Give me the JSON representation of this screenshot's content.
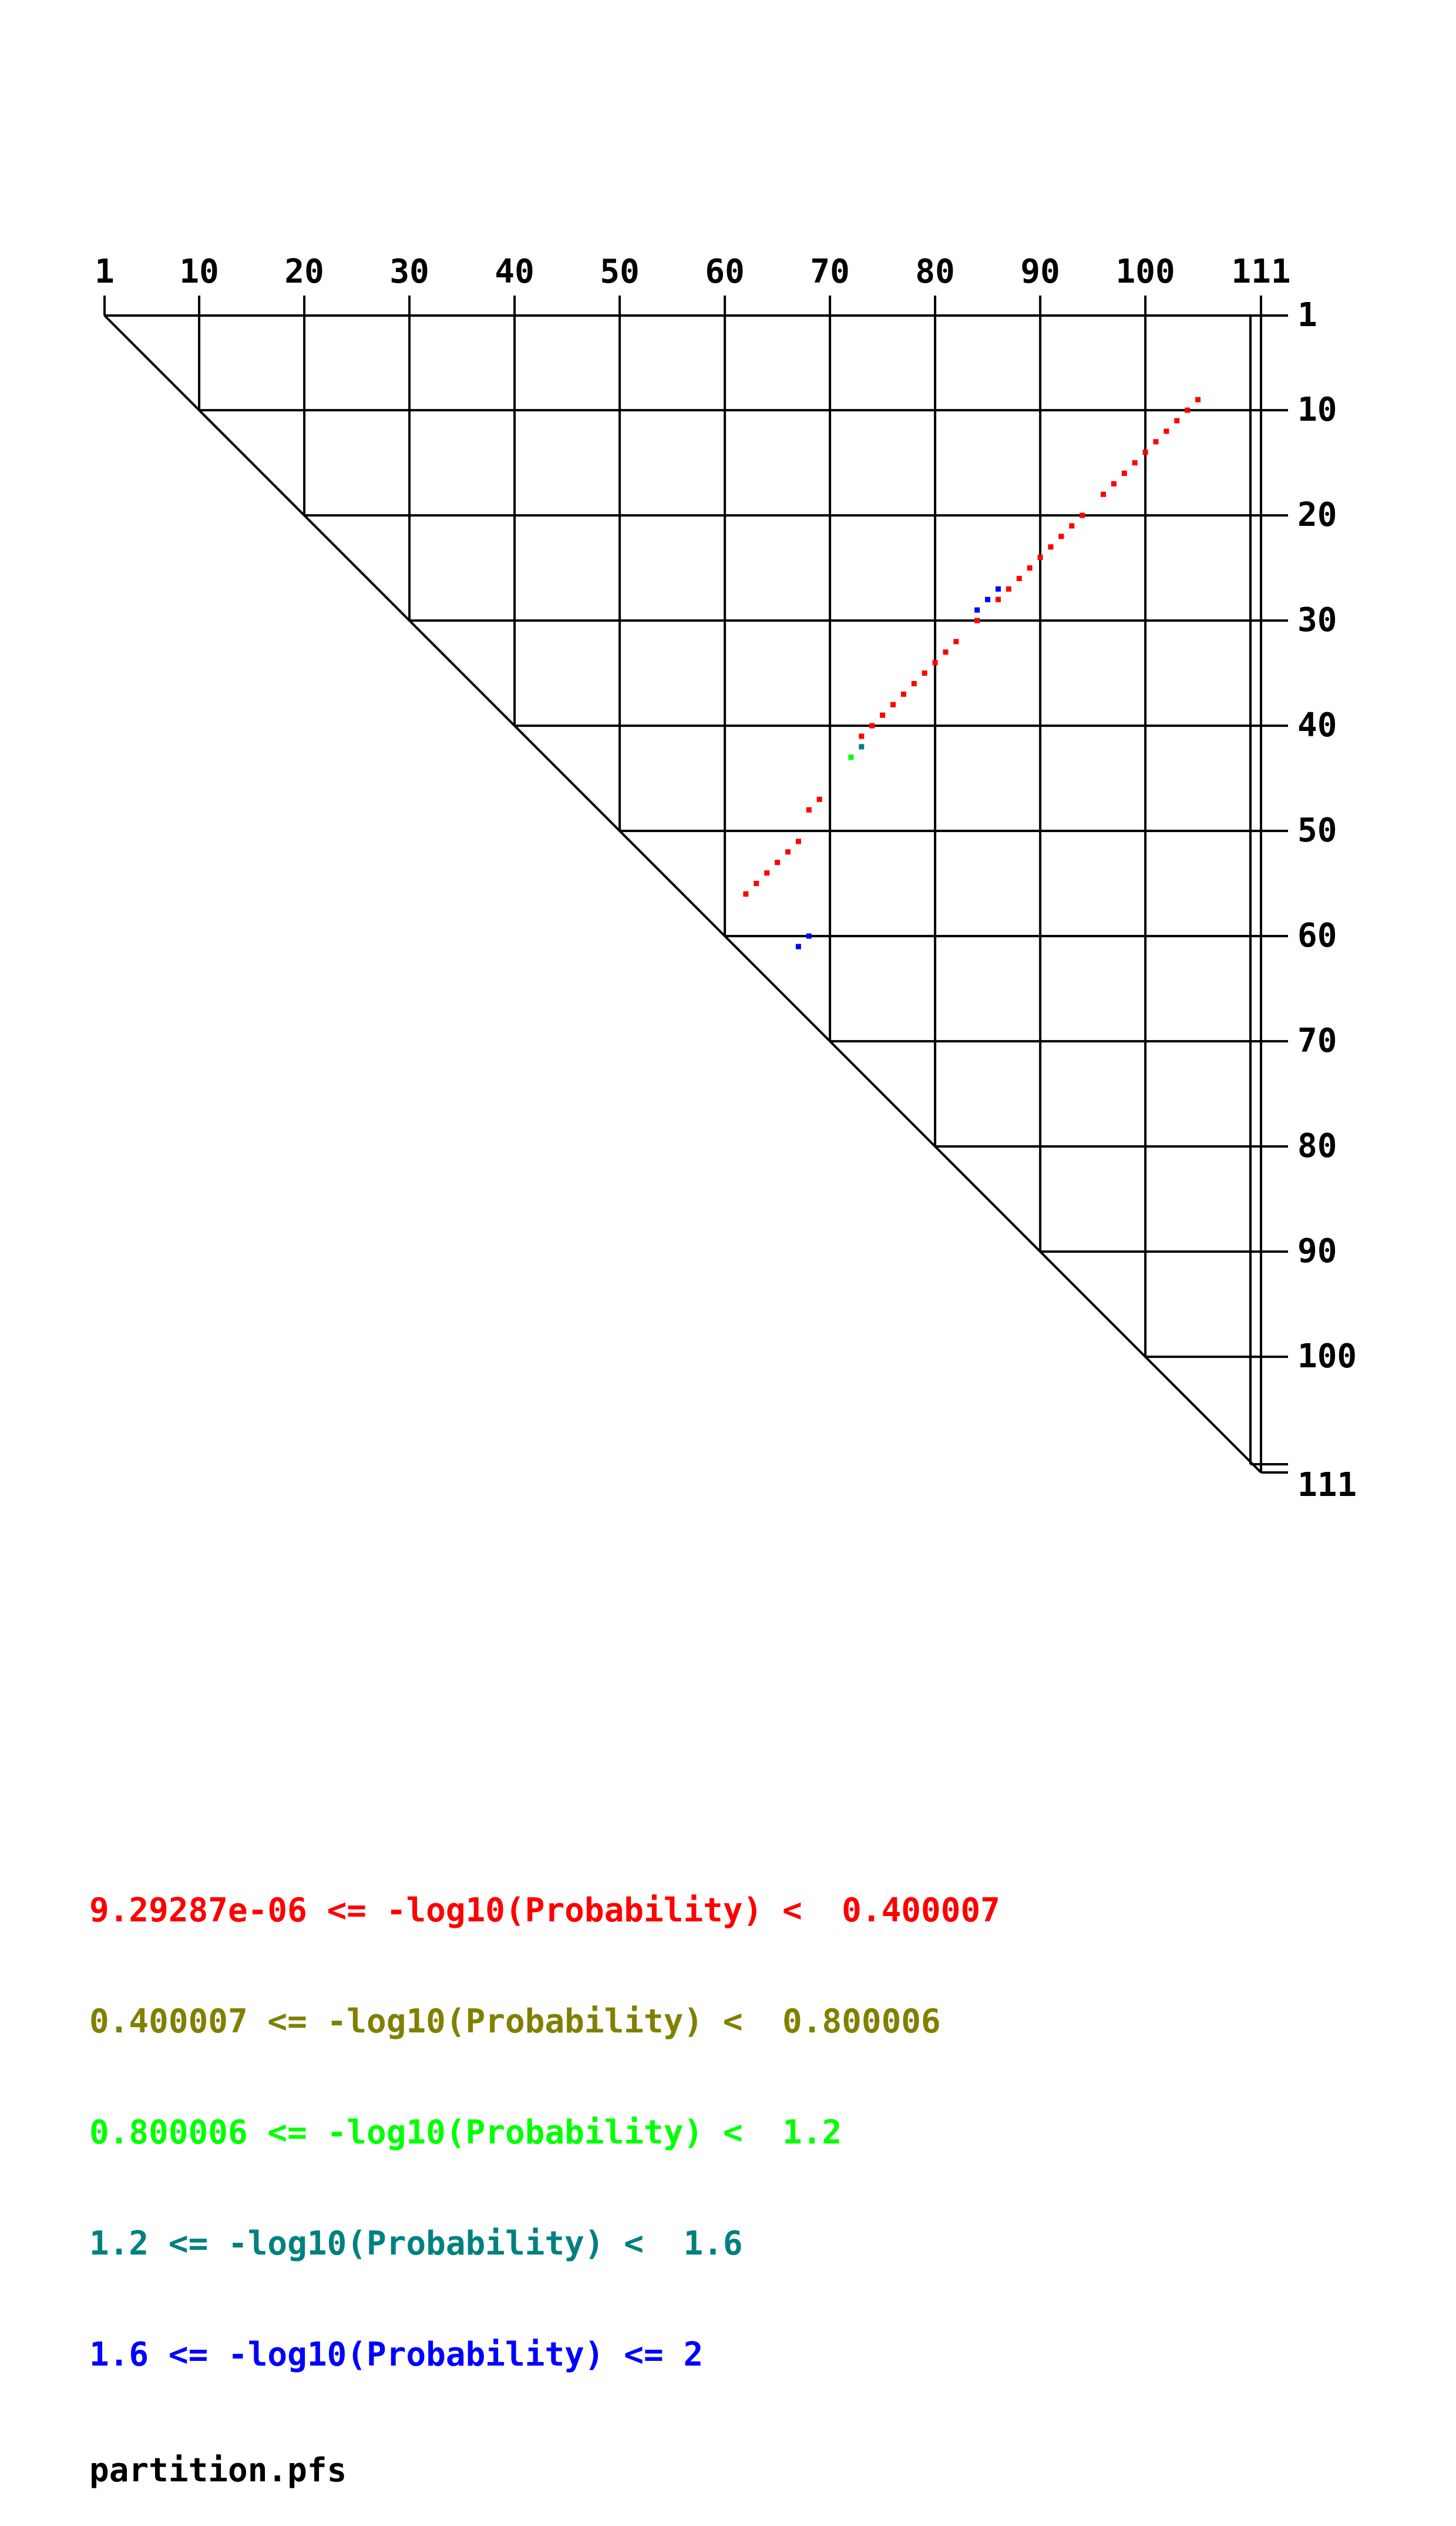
{
  "chart_data": {
    "type": "scatter",
    "title": "",
    "xlabel": "",
    "ylabel": "",
    "sequence_length": 111,
    "grid": true,
    "x_tick_labels": [
      "1",
      "10",
      "20",
      "30",
      "40",
      "50",
      "60",
      "70",
      "80",
      "90",
      "100",
      "111"
    ],
    "y_tick_labels": [
      "1",
      "10",
      "20",
      "30",
      "40",
      "50",
      "60",
      "70",
      "80",
      "90",
      "100",
      "111"
    ],
    "legend": [
      {
        "text": "9.29287e-06 <= -log10(Probability) <  0.400007",
        "color": "#ff0000"
      },
      {
        "text": "0.400007 <= -log10(Probability) <  0.800006",
        "color": "#808000"
      },
      {
        "text": "0.800006 <= -log10(Probability) <  1.2",
        "color": "#00ff00"
      },
      {
        "text": "1.2 <= -log10(Probability) <  1.6",
        "color": "#008080"
      },
      {
        "text": "1.6 <= -log10(Probability) <= 2",
        "color": "#0000ff"
      }
    ],
    "filename": "partition.pfs",
    "series": [
      {
        "color": "#ff0000",
        "points": [
          [
            105,
            9
          ],
          [
            104,
            10
          ],
          [
            103,
            11
          ],
          [
            102,
            12
          ],
          [
            101,
            13
          ],
          [
            100,
            14
          ],
          [
            99,
            15
          ],
          [
            98,
            16
          ],
          [
            97,
            17
          ],
          [
            96,
            18
          ],
          [
            94,
            20
          ],
          [
            93,
            21
          ],
          [
            92,
            22
          ],
          [
            91,
            23
          ],
          [
            90,
            24
          ],
          [
            89,
            25
          ],
          [
            88,
            26
          ],
          [
            87,
            27
          ],
          [
            86,
            28
          ],
          [
            84,
            30
          ],
          [
            82,
            32
          ],
          [
            81,
            33
          ],
          [
            80,
            34
          ],
          [
            79,
            35
          ],
          [
            78,
            36
          ],
          [
            77,
            37
          ],
          [
            76,
            38
          ],
          [
            75,
            39
          ],
          [
            74,
            40
          ],
          [
            73,
            41
          ],
          [
            69,
            47
          ],
          [
            68,
            48
          ],
          [
            67,
            51
          ],
          [
            66,
            52
          ],
          [
            65,
            53
          ],
          [
            64,
            54
          ],
          [
            63,
            55
          ],
          [
            62,
            56
          ]
        ]
      },
      {
        "color": "#0000ff",
        "points": [
          [
            86,
            27
          ],
          [
            85,
            28
          ],
          [
            84,
            29
          ],
          [
            68,
            60
          ],
          [
            67,
            61
          ]
        ]
      },
      {
        "color": "#00ff00",
        "points": [
          [
            72,
            43
          ]
        ]
      },
      {
        "color": "#008080",
        "points": [
          [
            73,
            42
          ]
        ]
      }
    ]
  }
}
